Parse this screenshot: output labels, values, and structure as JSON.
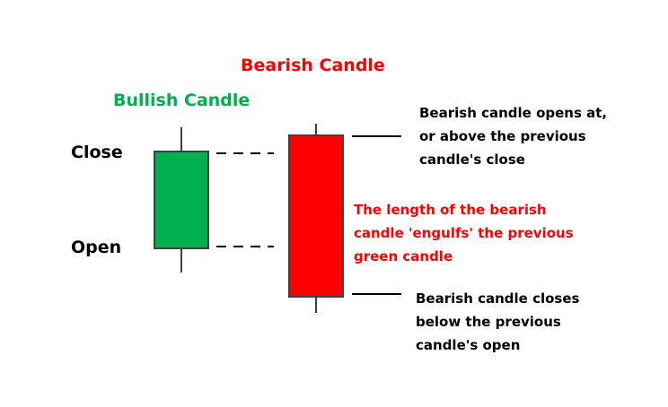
{
  "colors": {
    "bullish": "#00b050",
    "bearish": "#ff0000",
    "text": "#000000",
    "outline": "#404040"
  },
  "titles": {
    "bearish": "Bearish Candle",
    "bullish": "Bullish Candle"
  },
  "axis_labels": {
    "close": "Close",
    "open": "Open"
  },
  "annotations": {
    "bearish_open": [
      "Bearish candle opens at,",
      "or above the previous",
      "candle's close"
    ],
    "engulf": [
      "The length of the bearish",
      "candle 'engulfs' the previous",
      "green candle"
    ],
    "bearish_close": [
      "Bearish candle closes",
      "below the previous",
      "candle's open"
    ]
  }
}
